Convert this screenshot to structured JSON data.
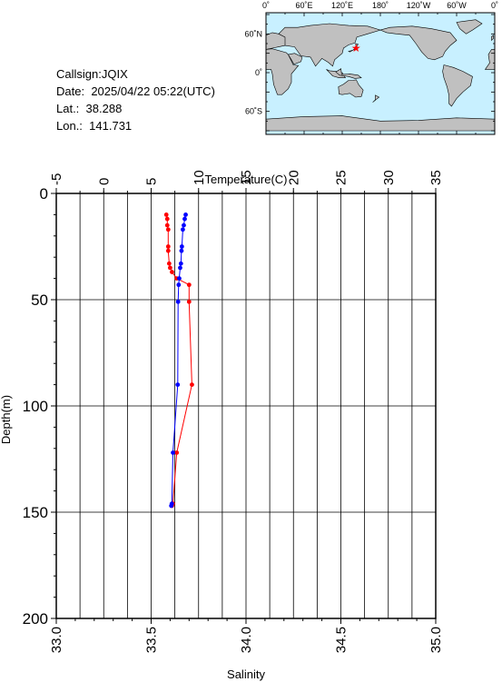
{
  "station": {
    "callsign_label": "Callsign:",
    "callsign": "JQIX",
    "date_label": "Date:",
    "date": "2025/04/22 05:22(UTC)",
    "lat_label": "Lat.:",
    "lat": "38.288",
    "lon_label": "Lon.:",
    "lon": "141.731"
  },
  "map": {
    "top_ticks": [
      "0˚",
      "60˚E",
      "120˚E",
      "180˚",
      "120˚W",
      "60˚W",
      "0˚"
    ],
    "left_ticks": [
      "60˚N",
      "0˚",
      "60˚S"
    ],
    "ocean_color": "#c8f0ff",
    "land_color": "#c0c0c0",
    "marker_color": "#ff0000",
    "marker": {
      "lat": 38.288,
      "lon": 141.731
    }
  },
  "chart_data": {
    "type": "line",
    "top_axis": {
      "label": "Temperature(C)",
      "range": [
        -5,
        35
      ],
      "ticks": [
        "-5",
        "0",
        "5",
        "10",
        "15",
        "20",
        "25",
        "30",
        "35"
      ]
    },
    "bottom_axis": {
      "label": "Salinity",
      "range": [
        33.0,
        35.0
      ],
      "ticks": [
        "33.0",
        "33.5",
        "34.0",
        "34.5",
        "35.0"
      ]
    },
    "left_axis": {
      "label": "Depth(m)",
      "range": [
        0,
        200
      ],
      "inverted": true,
      "ticks": [
        "0",
        "50",
        "100",
        "150",
        "200"
      ]
    },
    "grid": true,
    "series": [
      {
        "axis": "temperature",
        "color": "#ff0000",
        "points": [
          [
            6.6,
            10
          ],
          [
            6.7,
            12
          ],
          [
            6.7,
            15
          ],
          [
            6.8,
            17
          ],
          [
            6.8,
            25
          ],
          [
            6.8,
            27
          ],
          [
            6.9,
            33
          ],
          [
            7.0,
            35
          ],
          [
            7.2,
            37
          ],
          [
            7.7,
            40
          ],
          [
            9.0,
            43
          ],
          [
            9.0,
            51
          ],
          [
            9.3,
            90
          ],
          [
            7.7,
            122
          ],
          [
            7.3,
            146
          ],
          [
            7.2,
            147
          ]
        ]
      },
      {
        "axis": "salinity",
        "color": "#0000ff",
        "points": [
          [
            33.682,
            10
          ],
          [
            33.677,
            12
          ],
          [
            33.672,
            15
          ],
          [
            33.667,
            17
          ],
          [
            33.662,
            25
          ],
          [
            33.66,
            27
          ],
          [
            33.657,
            33
          ],
          [
            33.653,
            35
          ],
          [
            33.648,
            40
          ],
          [
            33.645,
            43
          ],
          [
            33.642,
            51
          ],
          [
            33.64,
            90
          ],
          [
            33.615,
            122
          ],
          [
            33.609,
            146
          ],
          [
            33.606,
            147
          ]
        ]
      }
    ]
  }
}
